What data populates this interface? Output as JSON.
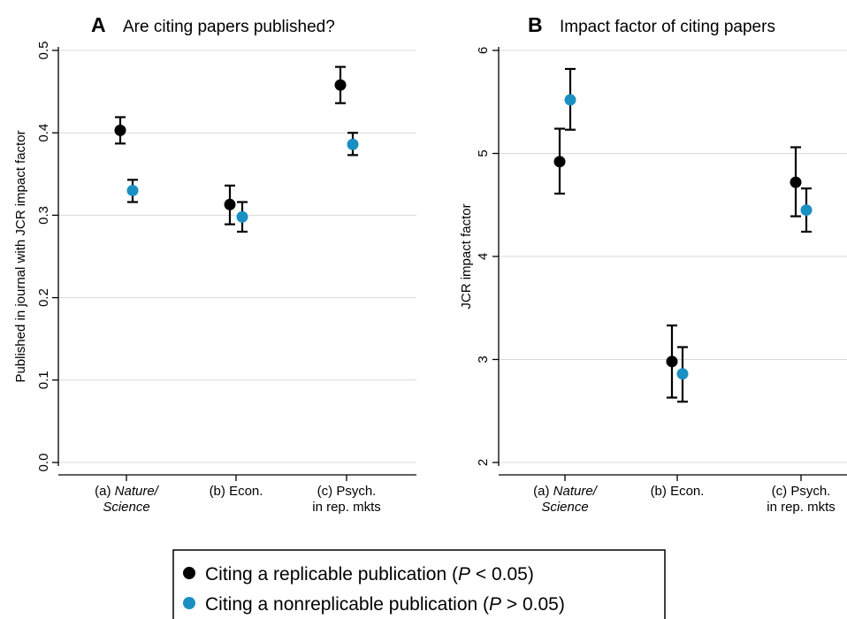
{
  "legend": {
    "items": [
      {
        "marker": "black",
        "text_main": "Citing a replicable publication (",
        "text_var": "P",
        "text_op": " < 0.05)"
      },
      {
        "marker": "blue",
        "text_main": "Citing a nonreplicable publication (",
        "text_var": "P",
        "text_op": " > 0.05)"
      }
    ]
  },
  "colors": {
    "black": "#000000",
    "blue": "#1a8fc2",
    "axis": "#000000",
    "grid": "#d9d9d9"
  },
  "categories": [
    {
      "letter": "(a) ",
      "italic": "Nature/",
      "line2": "Science",
      "line2_italic": true
    },
    {
      "letter": "(b) Econ.",
      "italic": "",
      "line2": "",
      "line2_italic": false
    },
    {
      "letter": "(c) Psych.",
      "italic": "",
      "line2": "in rep. mkts",
      "line2_italic": false
    }
  ],
  "chart_data": [
    {
      "type": "scatter",
      "panel_letter": "A",
      "title": "Are citing papers published?",
      "xlabel": "",
      "ylabel": "Published in journal with JCR impact factor",
      "ylim": [
        0.0,
        0.5
      ],
      "yticks": [
        "0.0",
        "0.1",
        "0.2",
        "0.3",
        "0.4",
        "0.5"
      ],
      "ytick_values": [
        0.0,
        0.1,
        0.2,
        0.3,
        0.4,
        0.5
      ],
      "grid": true,
      "series": [
        {
          "color": "black",
          "values": [
            0.403,
            0.313,
            0.458
          ],
          "lower": [
            0.387,
            0.289,
            0.436
          ],
          "upper": [
            0.419,
            0.336,
            0.48
          ]
        },
        {
          "color": "blue",
          "values": [
            0.33,
            0.298,
            0.386
          ],
          "lower": [
            0.316,
            0.28,
            0.373
          ],
          "upper": [
            0.343,
            0.316,
            0.4
          ]
        }
      ]
    },
    {
      "type": "scatter",
      "panel_letter": "B",
      "title": "Impact factor of citing papers",
      "xlabel": "",
      "ylabel": "JCR impact factor",
      "ylim": [
        2,
        6
      ],
      "yticks": [
        "2",
        "3",
        "4",
        "5",
        "6"
      ],
      "ytick_values": [
        2,
        3,
        4,
        5,
        6
      ],
      "grid": true,
      "series": [
        {
          "color": "black",
          "values": [
            4.92,
            2.98,
            4.72
          ],
          "lower": [
            4.61,
            2.63,
            4.39
          ],
          "upper": [
            5.24,
            3.33,
            5.06
          ]
        },
        {
          "color": "blue",
          "values": [
            5.52,
            2.86,
            4.45
          ],
          "lower": [
            5.23,
            2.59,
            4.24
          ],
          "upper": [
            5.82,
            3.12,
            4.66
          ]
        }
      ]
    }
  ]
}
